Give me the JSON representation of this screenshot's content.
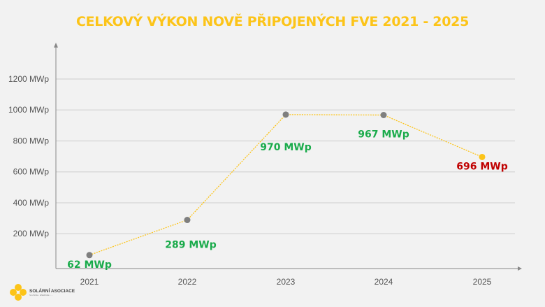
{
  "chart_data": {
    "type": "line",
    "title": "CELKOVÝ VÝKON NOVĚ PŘIPOJENÝCH FVE 2021 - 2025",
    "categories": [
      "2021",
      "2022",
      "2023",
      "2024",
      "2025"
    ],
    "series": [
      {
        "values": [
          62,
          289,
          970,
          967,
          696
        ]
      }
    ],
    "data_labels": [
      "62 MWp",
      "289 MWp",
      "970 MWp",
      "967 MWp",
      "696 MWp"
    ],
    "y_ticks": [
      200,
      400,
      600,
      800,
      1000,
      1200
    ],
    "y_tick_labels": [
      "200 MWp",
      "400 MWp",
      "600 MWp",
      "800 MWp",
      "1000 MWp",
      "1200 MWp"
    ],
    "ylim": [
      0,
      1300
    ],
    "grid": true,
    "line_color": "#fcc419",
    "point_color": "#7f7f7f",
    "highlight_point_color": "#fcc419",
    "label_color": "#1aab4b",
    "highlight_label_color": "#c00000"
  },
  "logo": {
    "name": "SOLÁRNÍ ASOCIACE",
    "tagline": "SLUNCE • ENERGIE • ..."
  }
}
